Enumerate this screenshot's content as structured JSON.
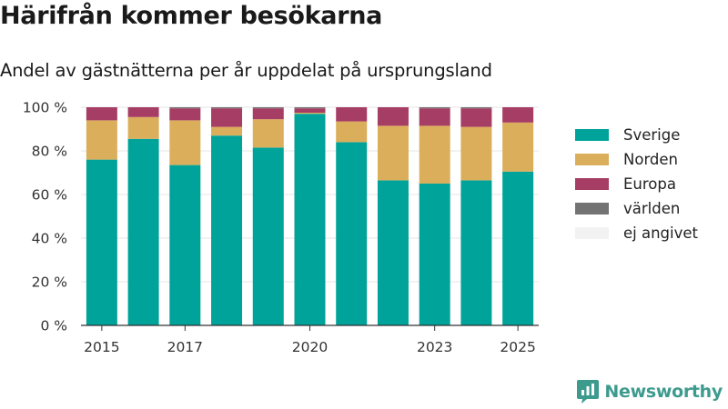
{
  "title": "Härifrån kommer besökarna",
  "subtitle": "Andel av gästnätterna per år uppdelat på ursprungsland",
  "brand": "Newsworthy",
  "chart_data": {
    "type": "bar",
    "stacked": true,
    "categories": [
      "2015",
      "2016",
      "2017",
      "2018",
      "2019",
      "2020",
      "2021",
      "2022",
      "2023",
      "2024",
      "2025"
    ],
    "x_tick_labels": [
      "2015",
      "2017",
      "2020",
      "2023",
      "2025"
    ],
    "y_ticks": [
      0,
      20,
      40,
      60,
      80,
      100
    ],
    "y_tick_suffix": " %",
    "ylim": [
      0,
      100
    ],
    "grid": true,
    "legend_position": "right",
    "series": [
      {
        "name": "Sverige",
        "color": "#00a39a",
        "values": [
          76,
          85.5,
          73.5,
          87,
          81.5,
          97,
          84,
          66.5,
          65,
          66.5,
          70.5
        ]
      },
      {
        "name": "Norden",
        "color": "#dbae5b",
        "values": [
          18,
          10,
          20.5,
          4,
          13,
          0.5,
          9.5,
          25,
          26.5,
          24.5,
          22.5
        ]
      },
      {
        "name": "Europa",
        "color": "#a63d64",
        "values": [
          6,
          4.5,
          5.5,
          8.5,
          5,
          2,
          6.5,
          8.5,
          8,
          8.5,
          7
        ]
      },
      {
        "name": "världen",
        "color": "#737373",
        "values": [
          0,
          0,
          0.5,
          0.5,
          0.5,
          0.5,
          0,
          0,
          0.5,
          0.5,
          0
        ]
      },
      {
        "name": "ej angivet",
        "color": "#f2f2f2",
        "values": [
          0,
          0,
          0,
          0,
          0,
          0,
          0,
          0,
          0,
          0,
          0
        ]
      }
    ]
  }
}
